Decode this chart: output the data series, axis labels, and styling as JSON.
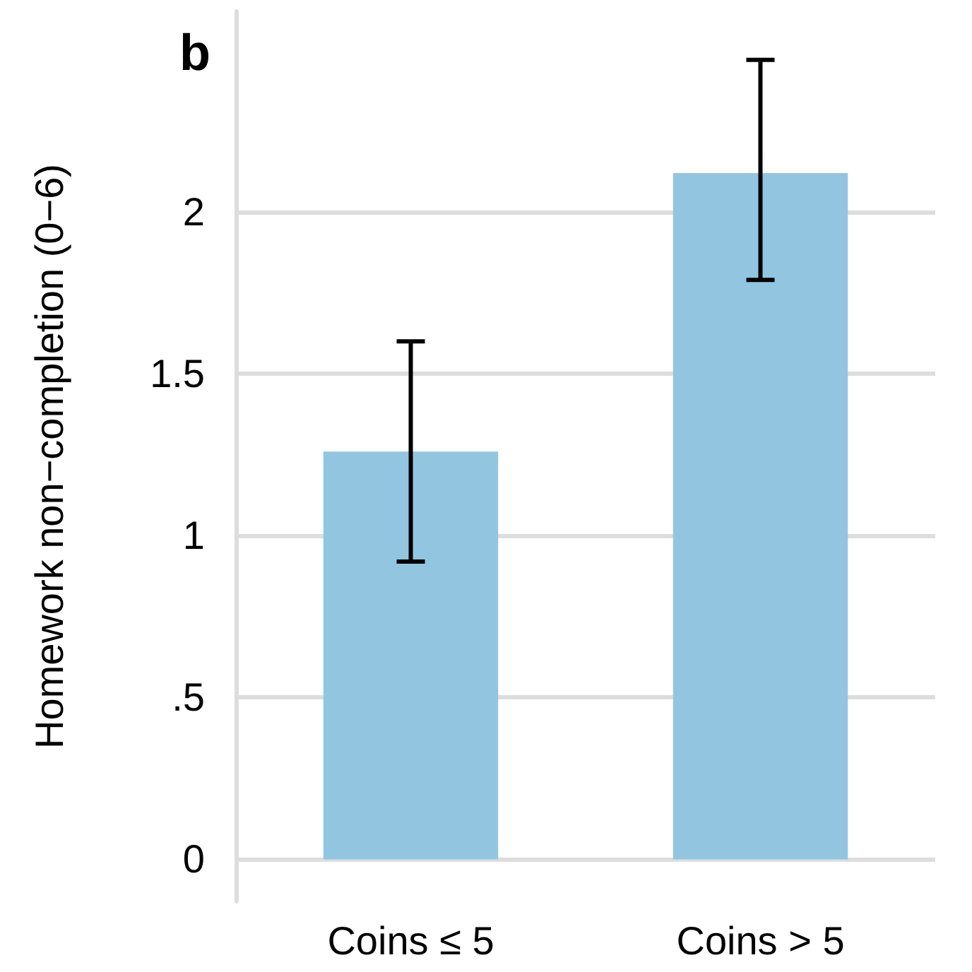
{
  "chart_data": {
    "type": "bar",
    "title": "b",
    "ylabel": "Homework non−completion (0−6)",
    "categories": [
      "Coins ≤ 5",
      "Coins > 5"
    ],
    "values": [
      1.26,
      2.12
    ],
    "errors": [
      [
        0.92,
        1.6
      ],
      [
        1.79,
        2.47
      ]
    ],
    "color": "#92c6e0",
    "ylim": [
      -0.13,
      2.62
    ],
    "yticks": [
      0,
      {
        "value": 0.5,
        "label": ".5"
      },
      1,
      1.5,
      2
    ],
    "grid": "y"
  }
}
